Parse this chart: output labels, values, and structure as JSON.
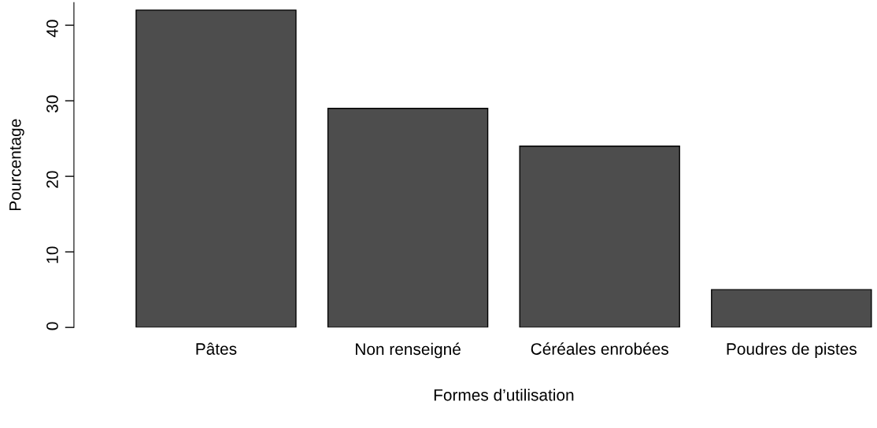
{
  "chart_data": {
    "type": "bar",
    "xlabel": "Formes d’utilisation",
    "ylabel": "Pourcentage",
    "categories": [
      "Pâtes",
      "Non renseigné",
      "Céréales enrobées",
      "Poudres de pistes"
    ],
    "values": [
      42,
      29,
      24,
      5
    ],
    "color": "#4d4d4d",
    "ylim": [
      0,
      43
    ],
    "yticks": [
      0,
      10,
      20,
      30,
      40
    ],
    "grid": false
  }
}
